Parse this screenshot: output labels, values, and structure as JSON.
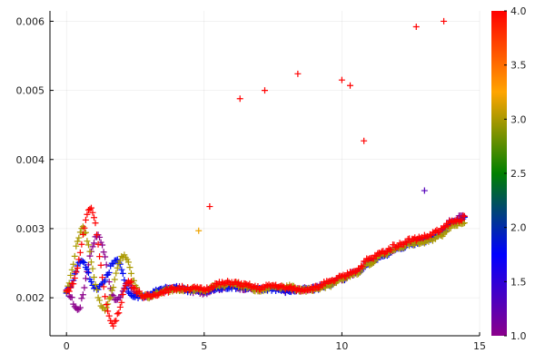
{
  "chart_data": {
    "type": "scatter",
    "marker": "+",
    "title": "",
    "xlabel": "",
    "ylabel": "",
    "xlim": [
      -0.6,
      15.0
    ],
    "ylim": [
      0.00145,
      0.00615
    ],
    "grid": true,
    "legend": "none",
    "x_ticks": [
      {
        "value": 0,
        "label": "0"
      },
      {
        "value": 5,
        "label": "5"
      },
      {
        "value": 10,
        "label": "10"
      },
      {
        "value": 15,
        "label": "15"
      }
    ],
    "y_ticks": [
      {
        "value": 0.002,
        "label": "0.002"
      },
      {
        "value": 0.003,
        "label": "0.003"
      },
      {
        "value": 0.004,
        "label": "0.004"
      },
      {
        "value": 0.005,
        "label": "0.005"
      },
      {
        "value": 0.006,
        "label": "0.006"
      }
    ],
    "colorbar": {
      "range": [
        1.0,
        4.0
      ],
      "colormap": [
        "#8b008b",
        "#0000ff",
        "#008000",
        "#ffa500",
        "#ff0000"
      ],
      "ticks": [
        {
          "value": 1.0,
          "label": "1.0"
        },
        {
          "value": 1.5,
          "label": "1.5"
        },
        {
          "value": 2.0,
          "label": "2.0"
        },
        {
          "value": 2.5,
          "label": "2.5"
        },
        {
          "value": 3.0,
          "label": "3.0"
        },
        {
          "value": 3.5,
          "label": "3.5"
        },
        {
          "value": 4.0,
          "label": "4.0"
        }
      ]
    },
    "series": [
      {
        "z": 1.0,
        "x": [
          0.0,
          0.1,
          0.2,
          0.3,
          0.4,
          0.5,
          0.6,
          0.7,
          0.8,
          0.9,
          1.0,
          1.1,
          1.2,
          1.3,
          1.4,
          1.5,
          1.6,
          1.7,
          1.8,
          1.9,
          2.0,
          2.1,
          2.2,
          2.3,
          2.4,
          2.6,
          2.8,
          3.0,
          3.3,
          3.6,
          4.0,
          4.5,
          5.0,
          5.5,
          6.0,
          6.5,
          7.0,
          7.5,
          8.0,
          8.5,
          9.0,
          9.5,
          10.0,
          10.5,
          11.0,
          11.5,
          12.0,
          12.5,
          13.0,
          13.5,
          14.0,
          14.5
        ],
        "y": [
          0.00209,
          0.00205,
          0.00198,
          0.00188,
          0.00182,
          0.00188,
          0.00205,
          0.00228,
          0.0025,
          0.00268,
          0.00282,
          0.0029,
          0.00288,
          0.00276,
          0.00258,
          0.00236,
          0.00214,
          0.002,
          0.00196,
          0.00198,
          0.00205,
          0.00215,
          0.00222,
          0.0022,
          0.00212,
          0.00204,
          0.002,
          0.00202,
          0.00208,
          0.00212,
          0.00214,
          0.0021,
          0.00208,
          0.00214,
          0.00216,
          0.00214,
          0.00212,
          0.00214,
          0.0021,
          0.00212,
          0.00214,
          0.0022,
          0.00228,
          0.00236,
          0.00252,
          0.00262,
          0.00272,
          0.0028,
          0.00284,
          0.00292,
          0.00312,
          0.0032
        ]
      },
      {
        "z": 1.8,
        "x": [
          0.0,
          0.1,
          0.2,
          0.3,
          0.4,
          0.5,
          0.6,
          0.7,
          0.8,
          0.9,
          1.0,
          1.1,
          1.2,
          1.3,
          1.4,
          1.5,
          1.6,
          1.7,
          1.8,
          1.9,
          2.0,
          2.1,
          2.2,
          2.3,
          2.4,
          2.6,
          2.8,
          3.0,
          3.3,
          3.6,
          4.0,
          4.5,
          5.0,
          5.5,
          6.0,
          6.5,
          7.0,
          7.5,
          8.0,
          8.5,
          9.0,
          9.5,
          10.0,
          10.5,
          11.0,
          11.5,
          12.0,
          12.5,
          13.0,
          13.5,
          14.0,
          14.5
        ],
        "y": [
          0.00209,
          0.00214,
          0.00222,
          0.00233,
          0.00246,
          0.00254,
          0.00254,
          0.00246,
          0.00234,
          0.00222,
          0.00216,
          0.00214,
          0.00216,
          0.0022,
          0.00226,
          0.00234,
          0.00244,
          0.00252,
          0.00256,
          0.00252,
          0.0024,
          0.00226,
          0.00214,
          0.00206,
          0.00202,
          0.00202,
          0.00203,
          0.00205,
          0.0021,
          0.00213,
          0.00214,
          0.00211,
          0.00209,
          0.00213,
          0.00216,
          0.00215,
          0.00212,
          0.00213,
          0.0021,
          0.00211,
          0.00213,
          0.00219,
          0.00227,
          0.00236,
          0.0025,
          0.00262,
          0.0027,
          0.00278,
          0.00283,
          0.00291,
          0.00308,
          0.00316
        ]
      },
      {
        "z": 3.0,
        "x": [
          0.0,
          0.1,
          0.2,
          0.3,
          0.4,
          0.5,
          0.6,
          0.7,
          0.8,
          0.9,
          1.0,
          1.1,
          1.2,
          1.3,
          1.4,
          1.5,
          1.6,
          1.7,
          1.8,
          1.9,
          2.0,
          2.1,
          2.2,
          2.3,
          2.4,
          2.6,
          2.8,
          3.0,
          3.3,
          3.6,
          4.0,
          4.5,
          5.0,
          5.5,
          6.0,
          6.5,
          7.0,
          7.5,
          8.0,
          8.5,
          9.0,
          9.5,
          10.0,
          10.5,
          11.0,
          11.5,
          12.0,
          12.5,
          13.0,
          13.5,
          14.0,
          14.5
        ],
        "y": [
          0.00209,
          0.00222,
          0.0024,
          0.00262,
          0.00282,
          0.00296,
          0.003,
          0.00292,
          0.00276,
          0.00254,
          0.00232,
          0.0021,
          0.00194,
          0.00186,
          0.00184,
          0.0019,
          0.00202,
          0.00218,
          0.00234,
          0.00248,
          0.00258,
          0.00262,
          0.00256,
          0.00242,
          0.00226,
          0.0021,
          0.00202,
          0.00202,
          0.00206,
          0.0021,
          0.00213,
          0.00212,
          0.0021,
          0.00218,
          0.0022,
          0.00216,
          0.0021,
          0.00216,
          0.00216,
          0.00212,
          0.0021,
          0.00218,
          0.00226,
          0.00236,
          0.0025,
          0.00262,
          0.00272,
          0.00278,
          0.0028,
          0.00288,
          0.00304,
          0.0031
        ]
      },
      {
        "z": 4.0,
        "x": [
          0.0,
          0.1,
          0.2,
          0.3,
          0.4,
          0.5,
          0.6,
          0.7,
          0.8,
          0.9,
          1.0,
          1.1,
          1.2,
          1.3,
          1.4,
          1.5,
          1.6,
          1.7,
          1.8,
          1.9,
          2.0,
          2.1,
          2.2,
          2.3,
          2.4,
          2.6,
          2.8,
          3.0,
          3.3,
          3.6,
          4.0,
          4.5,
          5.0,
          5.5,
          6.0,
          6.5,
          7.0,
          7.5,
          8.0,
          8.5,
          9.0,
          9.5,
          10.0,
          10.5,
          11.0,
          11.5,
          12.0,
          12.5,
          13.0,
          13.5,
          14.0,
          14.5
        ],
        "y": [
          0.00209,
          0.00212,
          0.00218,
          0.00228,
          0.00244,
          0.00266,
          0.0029,
          0.00312,
          0.00328,
          0.0033,
          0.00318,
          0.00294,
          0.00262,
          0.0023,
          0.002,
          0.00178,
          0.00166,
          0.00162,
          0.00168,
          0.0018,
          0.00196,
          0.00212,
          0.00222,
          0.00224,
          0.00218,
          0.00208,
          0.00202,
          0.00202,
          0.00206,
          0.0021,
          0.00214,
          0.00214,
          0.00212,
          0.0022,
          0.00222,
          0.00218,
          0.00214,
          0.00218,
          0.00214,
          0.00212,
          0.00214,
          0.00222,
          0.0023,
          0.0024,
          0.00256,
          0.00266,
          0.00276,
          0.00284,
          0.00288,
          0.00296,
          0.0031,
          0.00316
        ]
      }
    ],
    "outliers": [
      {
        "x": 4.8,
        "y": 0.00297,
        "z": 3.2
      },
      {
        "x": 5.2,
        "y": 0.00332,
        "z": 4.0
      },
      {
        "x": 6.3,
        "y": 0.00488,
        "z": 4.0
      },
      {
        "x": 7.2,
        "y": 0.005,
        "z": 4.0
      },
      {
        "x": 8.4,
        "y": 0.00524,
        "z": 4.0
      },
      {
        "x": 10.0,
        "y": 0.00515,
        "z": 4.0
      },
      {
        "x": 10.3,
        "y": 0.00507,
        "z": 4.0
      },
      {
        "x": 10.8,
        "y": 0.00427,
        "z": 4.0
      },
      {
        "x": 12.7,
        "y": 0.00592,
        "z": 4.0
      },
      {
        "x": 13.0,
        "y": 0.00355,
        "z": 1.3
      },
      {
        "x": 13.7,
        "y": 0.006,
        "z": 4.0
      }
    ]
  }
}
